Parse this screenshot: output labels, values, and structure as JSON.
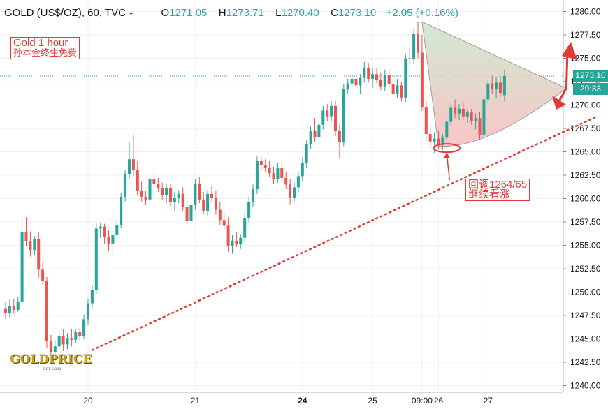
{
  "header": {
    "symbol": "GOLD (US$/OZ), 60, TVC",
    "open_label": "O",
    "open": "1271.05",
    "high_label": "H",
    "high": "1273.71",
    "low_label": "L",
    "low": "1270.40",
    "close_label": "C",
    "close": "1273.10",
    "change": "+2.05 (+0.16%)"
  },
  "annotations": {
    "title_line1": "Gold 1 hour",
    "title_line2": "孙本金终生免费",
    "callout_line1": "回调1264/65",
    "callout_line2": "继续看涨"
  },
  "price_tags": {
    "last_price": "1273.10",
    "countdown": "29:33"
  },
  "logo": {
    "text": "GOLDPRICE",
    "est": "EST. 2002"
  },
  "colors": {
    "up": "#26a69a",
    "down": "#ef5350",
    "annotation": "#e53935",
    "last_price_line": "#26a69a",
    "pattern_fill_top": "#c8e6c9",
    "pattern_fill_bottom": "#f8bbbb"
  },
  "chart_data": {
    "type": "candlestick",
    "y_axis": {
      "position": "right",
      "ticks": [
        1240.0,
        1242.5,
        1245.0,
        1247.5,
        1250.0,
        1252.5,
        1255.0,
        1257.5,
        1260.0,
        1262.5,
        1265.0,
        1267.5,
        1270.0,
        1272.5,
        1275.0,
        1277.5,
        1280.0
      ],
      "tick_labels": [
        "1240.00",
        "1242.50",
        "1245.00",
        "1247.50",
        "1250.00",
        "1252.50",
        "1255.00",
        "1257.50",
        "1260.00",
        "1262.50",
        "1265.00",
        "1267.50",
        "1270.00",
        "1272.50",
        "1275.00",
        "1277.50",
        "1280.00"
      ],
      "range": [
        1239.0,
        1281.0
      ]
    },
    "x_axis": {
      "tick_labels": [
        "20",
        "21",
        "24",
        "25",
        "09:00",
        "26",
        "27"
      ],
      "tick_index": [
        20,
        46,
        72,
        89,
        101,
        105,
        117
      ],
      "bold": [
        false,
        false,
        true,
        false,
        false,
        false,
        false
      ]
    },
    "grid": true,
    "last_price": 1273.1,
    "candles": [
      {
        "o": 1248.2,
        "h": 1249.0,
        "l": 1247.1,
        "c": 1247.8
      },
      {
        "o": 1247.8,
        "h": 1249.2,
        "l": 1247.3,
        "c": 1248.5
      },
      {
        "o": 1248.5,
        "h": 1249.3,
        "l": 1247.7,
        "c": 1248.1
      },
      {
        "o": 1248.1,
        "h": 1249.5,
        "l": 1247.9,
        "c": 1249.0
      },
      {
        "o": 1249.0,
        "h": 1258.2,
        "l": 1248.7,
        "c": 1256.4
      },
      {
        "o": 1256.4,
        "h": 1258.0,
        "l": 1254.9,
        "c": 1255.4
      },
      {
        "o": 1255.4,
        "h": 1256.5,
        "l": 1253.8,
        "c": 1254.5
      },
      {
        "o": 1254.5,
        "h": 1256.0,
        "l": 1253.9,
        "c": 1255.7
      },
      {
        "o": 1255.7,
        "h": 1256.4,
        "l": 1251.5,
        "c": 1252.4
      },
      {
        "o": 1252.4,
        "h": 1253.2,
        "l": 1250.8,
        "c": 1251.2
      },
      {
        "o": 1251.2,
        "h": 1251.6,
        "l": 1244.0,
        "c": 1244.8
      },
      {
        "o": 1244.8,
        "h": 1245.4,
        "l": 1242.8,
        "c": 1243.6
      },
      {
        "o": 1243.6,
        "h": 1244.9,
        "l": 1242.6,
        "c": 1244.2
      },
      {
        "o": 1244.2,
        "h": 1245.8,
        "l": 1243.5,
        "c": 1245.3
      },
      {
        "o": 1245.3,
        "h": 1246.0,
        "l": 1243.7,
        "c": 1244.4
      },
      {
        "o": 1244.4,
        "h": 1245.6,
        "l": 1243.9,
        "c": 1245.1
      },
      {
        "o": 1245.1,
        "h": 1246.1,
        "l": 1244.2,
        "c": 1244.9
      },
      {
        "o": 1244.9,
        "h": 1246.0,
        "l": 1244.5,
        "c": 1245.7
      },
      {
        "o": 1245.7,
        "h": 1246.2,
        "l": 1244.8,
        "c": 1245.3
      },
      {
        "o": 1245.3,
        "h": 1247.5,
        "l": 1245.0,
        "c": 1247.1
      },
      {
        "o": 1247.1,
        "h": 1249.3,
        "l": 1246.5,
        "c": 1248.8
      },
      {
        "o": 1248.8,
        "h": 1250.7,
        "l": 1248.3,
        "c": 1250.2
      },
      {
        "o": 1250.2,
        "h": 1257.3,
        "l": 1249.8,
        "c": 1256.8
      },
      {
        "o": 1256.8,
        "h": 1257.4,
        "l": 1255.8,
        "c": 1257.0
      },
      {
        "o": 1257.0,
        "h": 1257.3,
        "l": 1255.2,
        "c": 1255.9
      },
      {
        "o": 1255.9,
        "h": 1256.6,
        "l": 1254.4,
        "c": 1255.2
      },
      {
        "o": 1255.2,
        "h": 1256.7,
        "l": 1253.8,
        "c": 1256.1
      },
      {
        "o": 1256.1,
        "h": 1257.8,
        "l": 1255.6,
        "c": 1257.2
      },
      {
        "o": 1257.2,
        "h": 1260.6,
        "l": 1256.8,
        "c": 1260.2
      },
      {
        "o": 1260.2,
        "h": 1263.0,
        "l": 1259.7,
        "c": 1262.6
      },
      {
        "o": 1262.6,
        "h": 1266.0,
        "l": 1262.1,
        "c": 1264.2
      },
      {
        "o": 1264.2,
        "h": 1266.8,
        "l": 1262.4,
        "c": 1263.1
      },
      {
        "o": 1263.1,
        "h": 1264.0,
        "l": 1260.3,
        "c": 1260.8
      },
      {
        "o": 1260.8,
        "h": 1261.8,
        "l": 1259.7,
        "c": 1260.2
      },
      {
        "o": 1260.2,
        "h": 1260.8,
        "l": 1259.3,
        "c": 1259.9
      },
      {
        "o": 1259.9,
        "h": 1262.7,
        "l": 1259.4,
        "c": 1262.1
      },
      {
        "o": 1262.1,
        "h": 1263.0,
        "l": 1261.0,
        "c": 1261.6
      },
      {
        "o": 1261.6,
        "h": 1262.2,
        "l": 1260.7,
        "c": 1261.1
      },
      {
        "o": 1261.1,
        "h": 1261.7,
        "l": 1259.9,
        "c": 1260.4
      },
      {
        "o": 1260.4,
        "h": 1261.6,
        "l": 1259.5,
        "c": 1261.1
      },
      {
        "o": 1261.1,
        "h": 1261.6,
        "l": 1259.2,
        "c": 1259.6
      },
      {
        "o": 1259.6,
        "h": 1260.7,
        "l": 1258.7,
        "c": 1260.1
      },
      {
        "o": 1260.1,
        "h": 1260.9,
        "l": 1259.5,
        "c": 1260.5
      },
      {
        "o": 1260.5,
        "h": 1261.2,
        "l": 1258.6,
        "c": 1259.1
      },
      {
        "o": 1259.1,
        "h": 1259.8,
        "l": 1257.0,
        "c": 1257.6
      },
      {
        "o": 1257.6,
        "h": 1259.8,
        "l": 1257.1,
        "c": 1259.3
      },
      {
        "o": 1259.3,
        "h": 1262.1,
        "l": 1258.8,
        "c": 1261.6
      },
      {
        "o": 1261.6,
        "h": 1262.3,
        "l": 1259.5,
        "c": 1259.9
      },
      {
        "o": 1259.9,
        "h": 1260.7,
        "l": 1258.3,
        "c": 1258.7
      },
      {
        "o": 1258.7,
        "h": 1260.9,
        "l": 1258.2,
        "c": 1260.5
      },
      {
        "o": 1260.5,
        "h": 1261.3,
        "l": 1259.6,
        "c": 1260.1
      },
      {
        "o": 1260.1,
        "h": 1260.8,
        "l": 1258.3,
        "c": 1258.8
      },
      {
        "o": 1258.8,
        "h": 1259.6,
        "l": 1257.2,
        "c": 1257.7
      },
      {
        "o": 1257.7,
        "h": 1258.5,
        "l": 1256.6,
        "c": 1257.1
      },
      {
        "o": 1257.1,
        "h": 1258.0,
        "l": 1254.3,
        "c": 1254.9
      },
      {
        "o": 1254.9,
        "h": 1256.1,
        "l": 1254.1,
        "c": 1255.5
      },
      {
        "o": 1255.5,
        "h": 1256.4,
        "l": 1254.8,
        "c": 1255.1
      },
      {
        "o": 1255.1,
        "h": 1256.2,
        "l": 1254.6,
        "c": 1255.8
      },
      {
        "o": 1255.8,
        "h": 1258.5,
        "l": 1255.3,
        "c": 1257.9
      },
      {
        "o": 1257.9,
        "h": 1260.2,
        "l": 1257.4,
        "c": 1259.6
      },
      {
        "o": 1259.6,
        "h": 1261.5,
        "l": 1259.1,
        "c": 1261.0
      },
      {
        "o": 1261.0,
        "h": 1264.5,
        "l": 1260.5,
        "c": 1264.0
      },
      {
        "o": 1264.0,
        "h": 1264.6,
        "l": 1263.0,
        "c": 1263.6
      },
      {
        "o": 1263.6,
        "h": 1264.2,
        "l": 1262.8,
        "c": 1263.3
      },
      {
        "o": 1263.3,
        "h": 1264.0,
        "l": 1262.3,
        "c": 1262.7
      },
      {
        "o": 1262.7,
        "h": 1263.4,
        "l": 1261.6,
        "c": 1262.1
      },
      {
        "o": 1262.1,
        "h": 1263.8,
        "l": 1261.7,
        "c": 1263.3
      },
      {
        "o": 1263.3,
        "h": 1264.0,
        "l": 1261.7,
        "c": 1262.2
      },
      {
        "o": 1262.2,
        "h": 1262.9,
        "l": 1261.0,
        "c": 1261.5
      },
      {
        "o": 1261.5,
        "h": 1262.1,
        "l": 1259.4,
        "c": 1260.1
      },
      {
        "o": 1260.1,
        "h": 1261.7,
        "l": 1259.7,
        "c": 1261.2
      },
      {
        "o": 1261.2,
        "h": 1262.9,
        "l": 1260.7,
        "c": 1262.4
      },
      {
        "o": 1262.4,
        "h": 1264.3,
        "l": 1261.9,
        "c": 1263.8
      },
      {
        "o": 1263.8,
        "h": 1266.3,
        "l": 1263.3,
        "c": 1265.8
      },
      {
        "o": 1265.8,
        "h": 1267.7,
        "l": 1265.3,
        "c": 1267.2
      },
      {
        "o": 1267.2,
        "h": 1268.6,
        "l": 1266.1,
        "c": 1266.6
      },
      {
        "o": 1266.6,
        "h": 1268.4,
        "l": 1266.1,
        "c": 1267.9
      },
      {
        "o": 1267.9,
        "h": 1269.9,
        "l": 1267.4,
        "c": 1269.4
      },
      {
        "o": 1269.4,
        "h": 1270.1,
        "l": 1268.3,
        "c": 1268.8
      },
      {
        "o": 1268.8,
        "h": 1270.4,
        "l": 1268.2,
        "c": 1269.9
      },
      {
        "o": 1269.9,
        "h": 1270.5,
        "l": 1266.7,
        "c": 1267.2
      },
      {
        "o": 1267.2,
        "h": 1268.0,
        "l": 1264.3,
        "c": 1266.0
      },
      {
        "o": 1266.0,
        "h": 1272.2,
        "l": 1265.6,
        "c": 1271.7
      },
      {
        "o": 1271.7,
        "h": 1272.8,
        "l": 1271.2,
        "c": 1272.3
      },
      {
        "o": 1272.3,
        "h": 1273.2,
        "l": 1271.7,
        "c": 1272.8
      },
      {
        "o": 1272.8,
        "h": 1273.6,
        "l": 1271.6,
        "c": 1272.1
      },
      {
        "o": 1272.1,
        "h": 1273.3,
        "l": 1271.2,
        "c": 1272.9
      },
      {
        "o": 1272.9,
        "h": 1274.6,
        "l": 1272.4,
        "c": 1274.0
      },
      {
        "o": 1274.0,
        "h": 1274.5,
        "l": 1272.4,
        "c": 1272.8
      },
      {
        "o": 1272.8,
        "h": 1273.9,
        "l": 1271.8,
        "c": 1273.3
      },
      {
        "o": 1273.3,
        "h": 1274.0,
        "l": 1272.3,
        "c": 1272.7
      },
      {
        "o": 1272.7,
        "h": 1273.5,
        "l": 1271.6,
        "c": 1272.0
      },
      {
        "o": 1272.0,
        "h": 1273.8,
        "l": 1271.5,
        "c": 1273.2
      },
      {
        "o": 1273.2,
        "h": 1273.9,
        "l": 1271.9,
        "c": 1272.2
      },
      {
        "o": 1272.2,
        "h": 1272.9,
        "l": 1270.6,
        "c": 1271.2
      },
      {
        "o": 1271.2,
        "h": 1272.8,
        "l": 1270.8,
        "c": 1272.1
      },
      {
        "o": 1272.1,
        "h": 1272.5,
        "l": 1270.4,
        "c": 1270.8
      },
      {
        "o": 1270.8,
        "h": 1275.5,
        "l": 1270.3,
        "c": 1275.0
      },
      {
        "o": 1275.0,
        "h": 1276.2,
        "l": 1274.3,
        "c": 1274.9
      },
      {
        "o": 1274.9,
        "h": 1278.2,
        "l": 1274.4,
        "c": 1277.6
      },
      {
        "o": 1277.6,
        "h": 1278.9,
        "l": 1275.0,
        "c": 1275.6
      },
      {
        "o": 1275.6,
        "h": 1277.5,
        "l": 1269.4,
        "c": 1269.8
      },
      {
        "o": 1269.8,
        "h": 1270.5,
        "l": 1266.3,
        "c": 1266.9
      },
      {
        "o": 1266.9,
        "h": 1268.0,
        "l": 1265.3,
        "c": 1266.1
      },
      {
        "o": 1266.1,
        "h": 1267.1,
        "l": 1264.9,
        "c": 1266.4
      },
      {
        "o": 1266.4,
        "h": 1267.2,
        "l": 1265.3,
        "c": 1265.8
      },
      {
        "o": 1265.8,
        "h": 1266.9,
        "l": 1265.2,
        "c": 1266.5
      },
      {
        "o": 1266.5,
        "h": 1268.6,
        "l": 1266.2,
        "c": 1268.2
      },
      {
        "o": 1268.2,
        "h": 1270.1,
        "l": 1267.8,
        "c": 1269.7
      },
      {
        "o": 1269.7,
        "h": 1270.6,
        "l": 1268.6,
        "c": 1269.1
      },
      {
        "o": 1269.1,
        "h": 1270.1,
        "l": 1268.4,
        "c": 1269.6
      },
      {
        "o": 1269.6,
        "h": 1270.2,
        "l": 1268.4,
        "c": 1268.8
      },
      {
        "o": 1268.8,
        "h": 1269.5,
        "l": 1268.1,
        "c": 1269.2
      },
      {
        "o": 1269.2,
        "h": 1269.6,
        "l": 1267.9,
        "c": 1268.3
      },
      {
        "o": 1268.3,
        "h": 1269.1,
        "l": 1267.4,
        "c": 1268.6
      },
      {
        "o": 1268.6,
        "h": 1269.3,
        "l": 1266.3,
        "c": 1266.8
      },
      {
        "o": 1266.8,
        "h": 1271.1,
        "l": 1266.6,
        "c": 1270.6
      },
      {
        "o": 1270.6,
        "h": 1272.7,
        "l": 1270.2,
        "c": 1272.3
      },
      {
        "o": 1272.3,
        "h": 1273.2,
        "l": 1271.2,
        "c": 1271.7
      },
      {
        "o": 1271.7,
        "h": 1273.0,
        "l": 1270.7,
        "c": 1272.4
      },
      {
        "o": 1272.4,
        "h": 1273.1,
        "l": 1270.9,
        "c": 1271.3
      },
      {
        "o": 1271.05,
        "h": 1273.71,
        "l": 1270.4,
        "c": 1273.1
      }
    ],
    "drawings": {
      "dotted_trendline": {
        "from": {
          "index": 21,
          "price": 1243.8
        },
        "to": {
          "index": 143,
          "price": 1268.7
        }
      },
      "pattern_top_left": {
        "index": 101,
        "price": 1278.9
      },
      "pattern_bottom_left": {
        "index": 105,
        "price": 1265.6
      },
      "pattern_apex": {
        "index": 136,
        "price": 1271.8
      },
      "dip_marker": {
        "index": 107,
        "price": 1265.4
      }
    }
  }
}
